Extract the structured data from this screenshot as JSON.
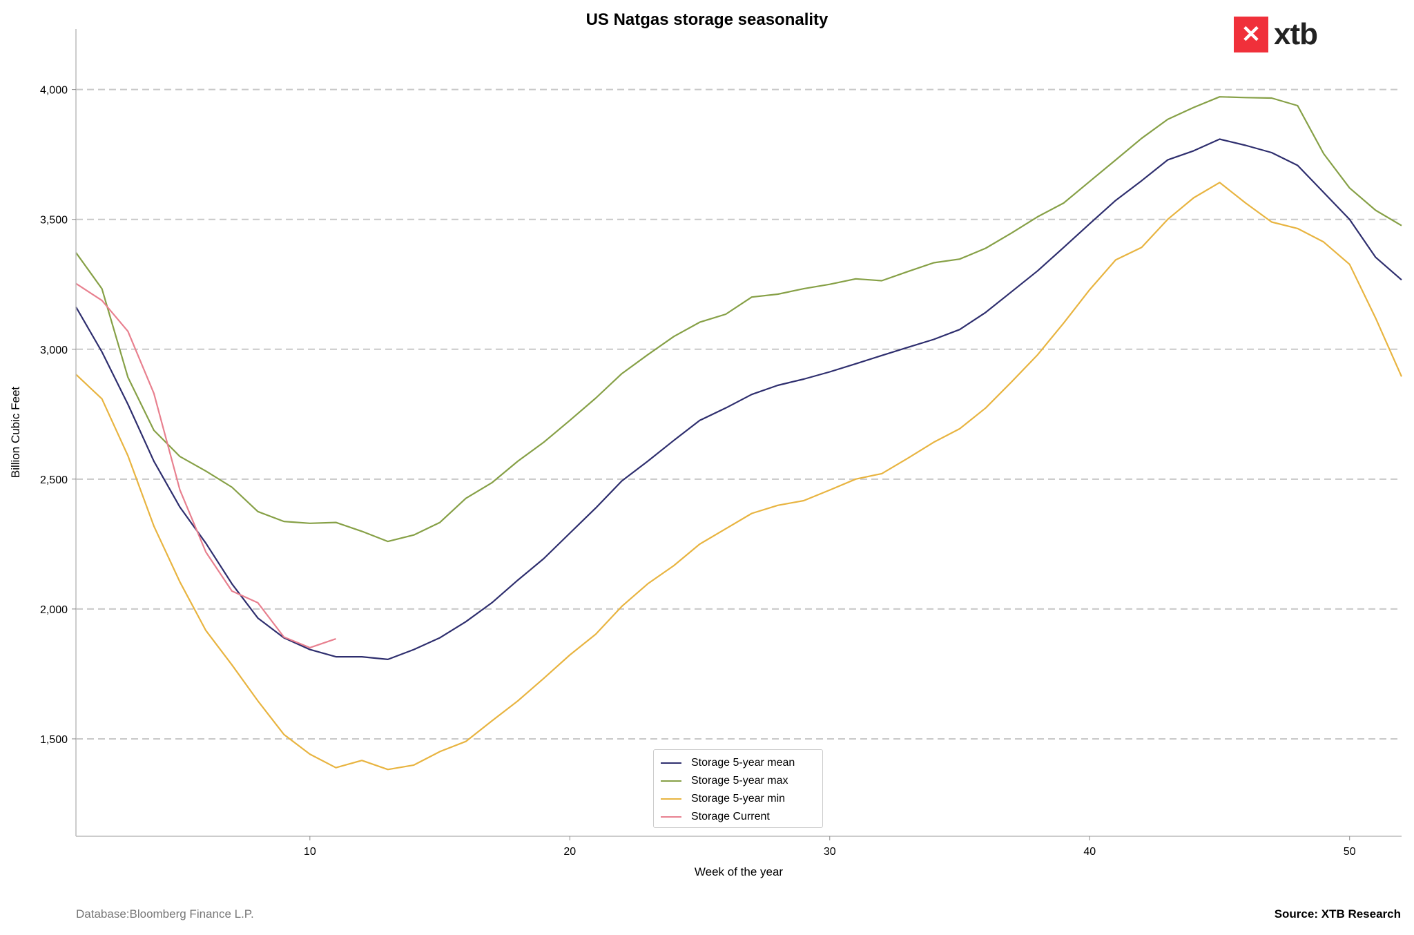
{
  "chart_data": {
    "type": "line",
    "title": "US Natgas storage seasonality",
    "xlabel": "Week of the year",
    "ylabel": "Billion Cubic Feet",
    "xlim": [
      1,
      52
    ],
    "ylim": [
      1125,
      4233
    ],
    "xticks": [
      10,
      20,
      30,
      40,
      50
    ],
    "yticks": [
      1500,
      2000,
      2500,
      3000,
      3500,
      4000
    ],
    "ytick_labels": [
      "1,500",
      "2,000",
      "2,500",
      "3,000",
      "3,500",
      "4,000"
    ],
    "grid": "horizontal dashed",
    "legend_position": "bottom-center",
    "series": [
      {
        "name": "Storage 5-year mean",
        "color": "#2e2e6e",
        "start_week": 1,
        "values": [
          3163,
          2990,
          2788,
          2569,
          2392,
          2253,
          2097,
          1965,
          1889,
          1844,
          1816,
          1816,
          1806,
          1844,
          1889,
          1951,
          2024,
          2111,
          2194,
          2292,
          2389,
          2493,
          2569,
          2649,
          2726,
          2774,
          2826,
          2861,
          2885,
          2913,
          2944,
          2976,
          3007,
          3038,
          3076,
          3142,
          3222,
          3302,
          3392,
          3483,
          3573,
          3649,
          3729,
          3764,
          3809,
          3785,
          3757,
          3708,
          3604,
          3500,
          3354,
          3267
        ]
      },
      {
        "name": "Storage 5-year max",
        "color": "#86a046",
        "start_week": 1,
        "values": [
          3372,
          3233,
          2892,
          2688,
          2587,
          2531,
          2469,
          2375,
          2337,
          2330,
          2333,
          2299,
          2260,
          2285,
          2333,
          2426,
          2486,
          2569,
          2642,
          2726,
          2812,
          2906,
          2979,
          3049,
          3104,
          3135,
          3201,
          3212,
          3233,
          3250,
          3271,
          3264,
          3299,
          3333,
          3347,
          3389,
          3448,
          3510,
          3563,
          3646,
          3729,
          3812,
          3885,
          3931,
          3972,
          3969,
          3967,
          3938,
          3753,
          3621,
          3535,
          3476
        ]
      },
      {
        "name": "Storage 5-year min",
        "color": "#e8b440",
        "start_week": 1,
        "values": [
          2903,
          2809,
          2590,
          2319,
          2104,
          1917,
          1785,
          1646,
          1517,
          1441,
          1389,
          1417,
          1382,
          1399,
          1451,
          1490,
          1569,
          1646,
          1733,
          1823,
          1903,
          2010,
          2097,
          2167,
          2250,
          2309,
          2368,
          2399,
          2417,
          2458,
          2500,
          2521,
          2580,
          2642,
          2694,
          2774,
          2875,
          2979,
          3101,
          3229,
          3344,
          3392,
          3500,
          3583,
          3642,
          3563,
          3490,
          3465,
          3413,
          3327,
          3120,
          2895
        ]
      },
      {
        "name": "Storage Current",
        "color": "#e8808f",
        "start_week": 1,
        "values": [
          3253,
          3188,
          3069,
          2830,
          2458,
          2219,
          2069,
          2024,
          1892,
          1851,
          1885
        ]
      }
    ]
  },
  "footer": {
    "left": "Database:Bloomberg Finance L.P.",
    "right": "Source: XTB Research"
  },
  "logo": {
    "text": "xtb"
  }
}
